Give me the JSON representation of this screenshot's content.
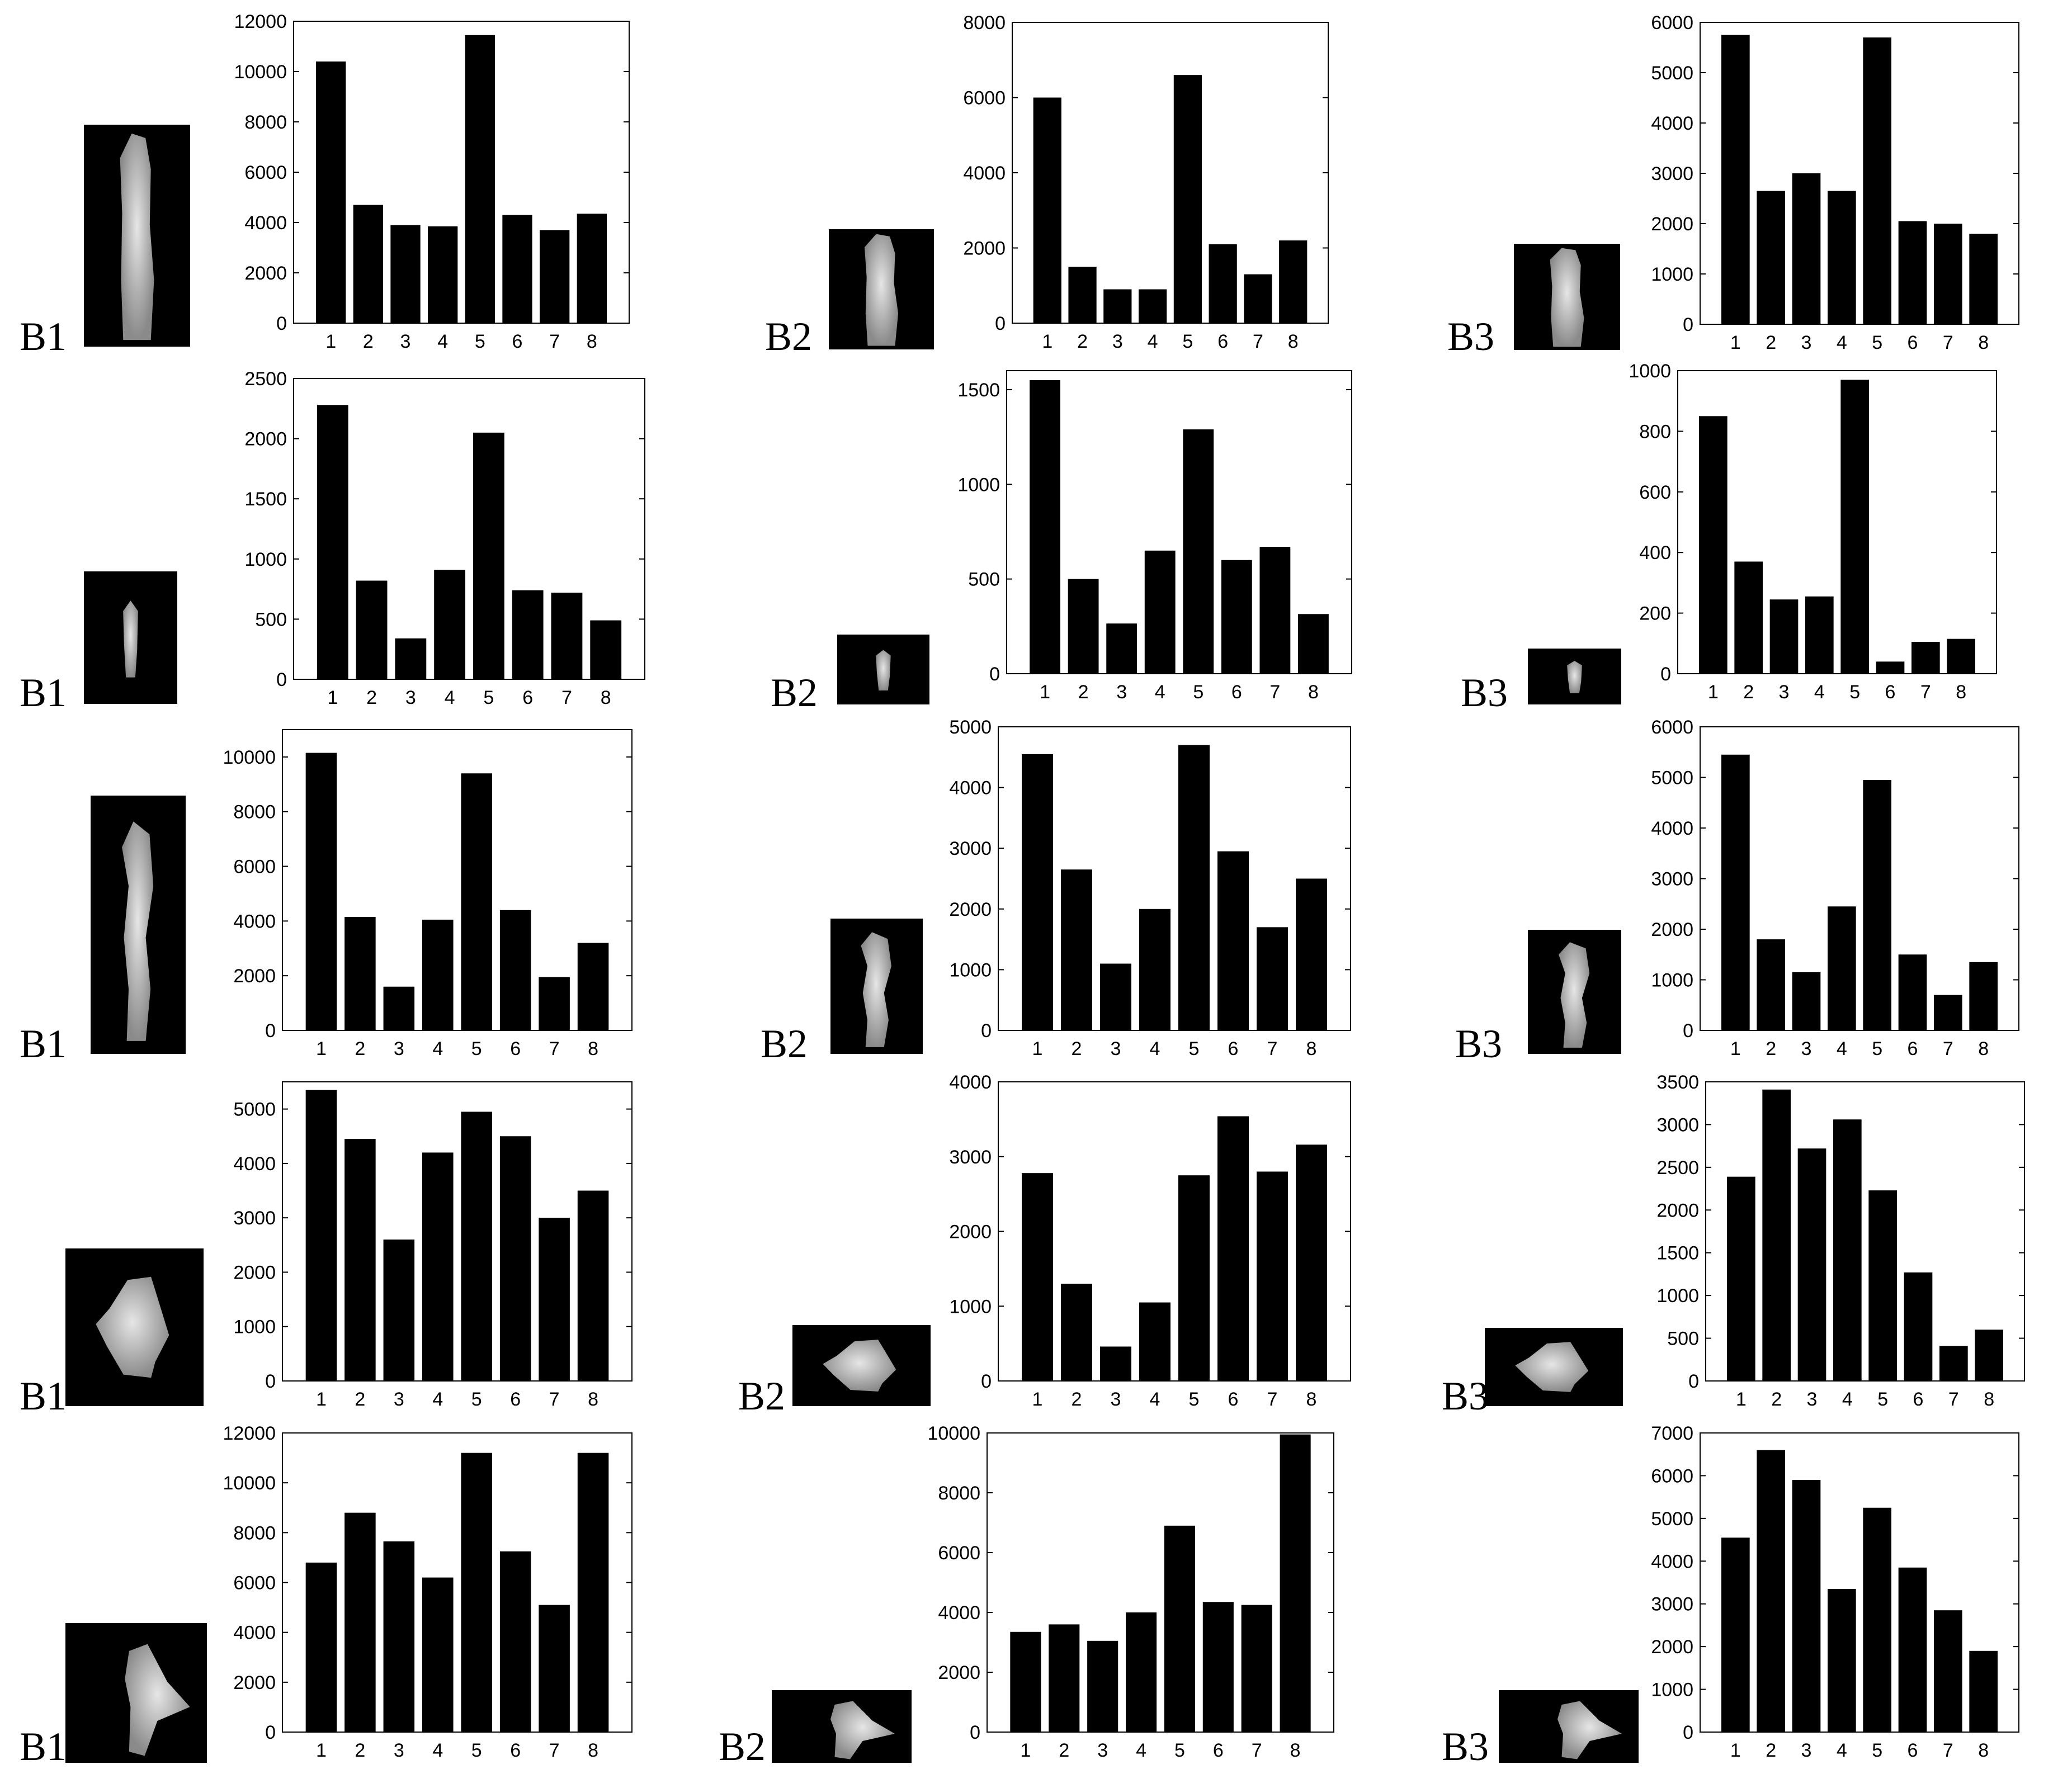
{
  "colors": {
    "bar": "#000000",
    "axis": "#000000",
    "background": "#ffffff",
    "thumb_background": "#000000",
    "object": "#bdbdbd"
  },
  "rows": [
    {
      "shape": "vertical-strip",
      "panels": [
        {
          "label": "B1",
          "chart_data": {
            "type": "bar",
            "categories": [
              "1",
              "2",
              "3",
              "4",
              "5",
              "6",
              "7",
              "8"
            ],
            "values": [
              10400,
              4700,
              3900,
              3850,
              11450,
              4300,
              3700,
              4350
            ],
            "ylim": [
              0,
              12000
            ],
            "yticks": [
              0,
              2000,
              4000,
              6000,
              8000,
              10000,
              12000
            ],
            "title": "",
            "xlabel": "",
            "ylabel": ""
          }
        },
        {
          "label": "B2",
          "chart_data": {
            "type": "bar",
            "categories": [
              "1",
              "2",
              "3",
              "4",
              "5",
              "6",
              "7",
              "8"
            ],
            "values": [
              6000,
              1500,
              900,
              900,
              6600,
              2100,
              1300,
              2200
            ],
            "ylim": [
              0,
              8000
            ],
            "yticks": [
              0,
              2000,
              4000,
              6000,
              8000
            ],
            "title": "",
            "xlabel": "",
            "ylabel": ""
          }
        },
        {
          "label": "B3",
          "chart_data": {
            "type": "bar",
            "categories": [
              "1",
              "2",
              "3",
              "4",
              "5",
              "6",
              "7",
              "8"
            ],
            "values": [
              5750,
              2650,
              3000,
              2650,
              5700,
              2050,
              2000,
              1800
            ],
            "ylim": [
              0,
              6000
            ],
            "yticks": [
              0,
              1000,
              2000,
              3000,
              4000,
              5000,
              6000
            ],
            "title": "",
            "xlabel": "",
            "ylabel": ""
          }
        }
      ]
    },
    {
      "shape": "thin-strip",
      "panels": [
        {
          "label": "B1",
          "chart_data": {
            "type": "bar",
            "categories": [
              "1",
              "2",
              "3",
              "4",
              "5",
              "6",
              "7",
              "8"
            ],
            "values": [
              2280,
              820,
              340,
              910,
              2050,
              740,
              720,
              490
            ],
            "ylim": [
              0,
              2500
            ],
            "yticks": [
              0,
              500,
              1000,
              1500,
              2000,
              2500
            ],
            "title": "",
            "xlabel": "",
            "ylabel": ""
          }
        },
        {
          "label": "B2",
          "chart_data": {
            "type": "bar",
            "categories": [
              "1",
              "2",
              "3",
              "4",
              "5",
              "6",
              "7",
              "8"
            ],
            "values": [
              1550,
              500,
              265,
              650,
              1290,
              600,
              670,
              315
            ],
            "ylim": [
              0,
              1600
            ],
            "yticks": [
              0,
              500,
              1000,
              1500
            ],
            "title": "",
            "xlabel": "",
            "ylabel": ""
          }
        },
        {
          "label": "B3",
          "chart_data": {
            "type": "bar",
            "categories": [
              "1",
              "2",
              "3",
              "4",
              "5",
              "6",
              "7",
              "8"
            ],
            "values": [
              850,
              370,
              245,
              255,
              970,
              40,
              105,
              115
            ],
            "ylim": [
              0,
              1000
            ],
            "yticks": [
              0,
              200,
              400,
              600,
              800,
              1000
            ],
            "title": "",
            "xlabel": "",
            "ylabel": ""
          }
        }
      ]
    },
    {
      "shape": "wavy-strip",
      "panels": [
        {
          "label": "B1",
          "chart_data": {
            "type": "bar",
            "categories": [
              "1",
              "2",
              "3",
              "4",
              "5",
              "6",
              "7",
              "8"
            ],
            "values": [
              10150,
              4150,
              1600,
              4050,
              9400,
              4400,
              1950,
              3200
            ],
            "ylim": [
              0,
              11000
            ],
            "yticks": [
              0,
              2000,
              4000,
              6000,
              8000,
              10000
            ],
            "title": "",
            "xlabel": "",
            "ylabel": ""
          }
        },
        {
          "label": "B2",
          "chart_data": {
            "type": "bar",
            "categories": [
              "1",
              "2",
              "3",
              "4",
              "5",
              "6",
              "7",
              "8"
            ],
            "values": [
              4550,
              2650,
              1100,
              2000,
              4700,
              2950,
              1700,
              2500
            ],
            "ylim": [
              0,
              5000
            ],
            "yticks": [
              0,
              1000,
              2000,
              3000,
              4000,
              5000
            ],
            "title": "",
            "xlabel": "",
            "ylabel": ""
          }
        },
        {
          "label": "B3",
          "chart_data": {
            "type": "bar",
            "categories": [
              "1",
              "2",
              "3",
              "4",
              "5",
              "6",
              "7",
              "8"
            ],
            "values": [
              5450,
              1800,
              1150,
              2450,
              4950,
              1500,
              700,
              1350
            ],
            "ylim": [
              0,
              6000
            ],
            "yticks": [
              0,
              1000,
              2000,
              3000,
              4000,
              5000,
              6000
            ],
            "title": "",
            "xlabel": "",
            "ylabel": ""
          }
        }
      ]
    },
    {
      "shape": "blob",
      "panels": [
        {
          "label": "B1",
          "chart_data": {
            "type": "bar",
            "categories": [
              "1",
              "2",
              "3",
              "4",
              "5",
              "6",
              "7",
              "8"
            ],
            "values": [
              5350,
              4450,
              2600,
              4200,
              4950,
              4500,
              3000,
              3500
            ],
            "ylim": [
              0,
              5500
            ],
            "yticks": [
              0,
              1000,
              2000,
              3000,
              4000,
              5000
            ],
            "title": "",
            "xlabel": "",
            "ylabel": ""
          }
        },
        {
          "label": "B2",
          "chart_data": {
            "type": "bar",
            "categories": [
              "1",
              "2",
              "3",
              "4",
              "5",
              "6",
              "7",
              "8"
            ],
            "values": [
              2780,
              1300,
              460,
              1050,
              2750,
              3540,
              2800,
              3160
            ],
            "ylim": [
              0,
              4000
            ],
            "yticks": [
              0,
              1000,
              2000,
              3000,
              4000
            ],
            "title": "",
            "xlabel": "",
            "ylabel": ""
          }
        },
        {
          "label": "B3",
          "chart_data": {
            "type": "bar",
            "categories": [
              "1",
              "2",
              "3",
              "4",
              "5",
              "6",
              "7",
              "8"
            ],
            "values": [
              2390,
              3410,
              2720,
              3060,
              2230,
              1270,
              410,
              600
            ],
            "ylim": [
              0,
              3500
            ],
            "yticks": [
              0,
              500,
              1000,
              1500,
              2000,
              2500,
              3000,
              3500
            ],
            "title": "",
            "xlabel": "",
            "ylabel": ""
          }
        }
      ]
    },
    {
      "shape": "triangle",
      "panels": [
        {
          "label": "B1",
          "chart_data": {
            "type": "bar",
            "categories": [
              "1",
              "2",
              "3",
              "4",
              "5",
              "6",
              "7",
              "8"
            ],
            "values": [
              6800,
              8800,
              7650,
              6200,
              11200,
              7250,
              5100,
              11200
            ],
            "ylim": [
              0,
              12000
            ],
            "yticks": [
              0,
              2000,
              4000,
              6000,
              8000,
              10000,
              12000
            ],
            "title": "",
            "xlabel": "",
            "ylabel": ""
          }
        },
        {
          "label": "B2",
          "chart_data": {
            "type": "bar",
            "categories": [
              "1",
              "2",
              "3",
              "4",
              "5",
              "6",
              "7",
              "8"
            ],
            "values": [
              3350,
              3600,
              3050,
              4000,
              6900,
              4350,
              4250,
              9950
            ],
            "ylim": [
              0,
              10000
            ],
            "yticks": [
              0,
              2000,
              4000,
              6000,
              8000,
              10000
            ],
            "title": "",
            "xlabel": "",
            "ylabel": ""
          }
        },
        {
          "label": "B3",
          "chart_data": {
            "type": "bar",
            "categories": [
              "1",
              "2",
              "3",
              "4",
              "5",
              "6",
              "7",
              "8"
            ],
            "values": [
              4550,
              6600,
              5900,
              3350,
              5250,
              3850,
              2850,
              1900
            ],
            "ylim": [
              0,
              7000
            ],
            "yticks": [
              0,
              1000,
              2000,
              3000,
              4000,
              5000,
              6000,
              7000
            ],
            "title": "",
            "xlabel": "",
            "ylabel": ""
          }
        }
      ]
    }
  ]
}
